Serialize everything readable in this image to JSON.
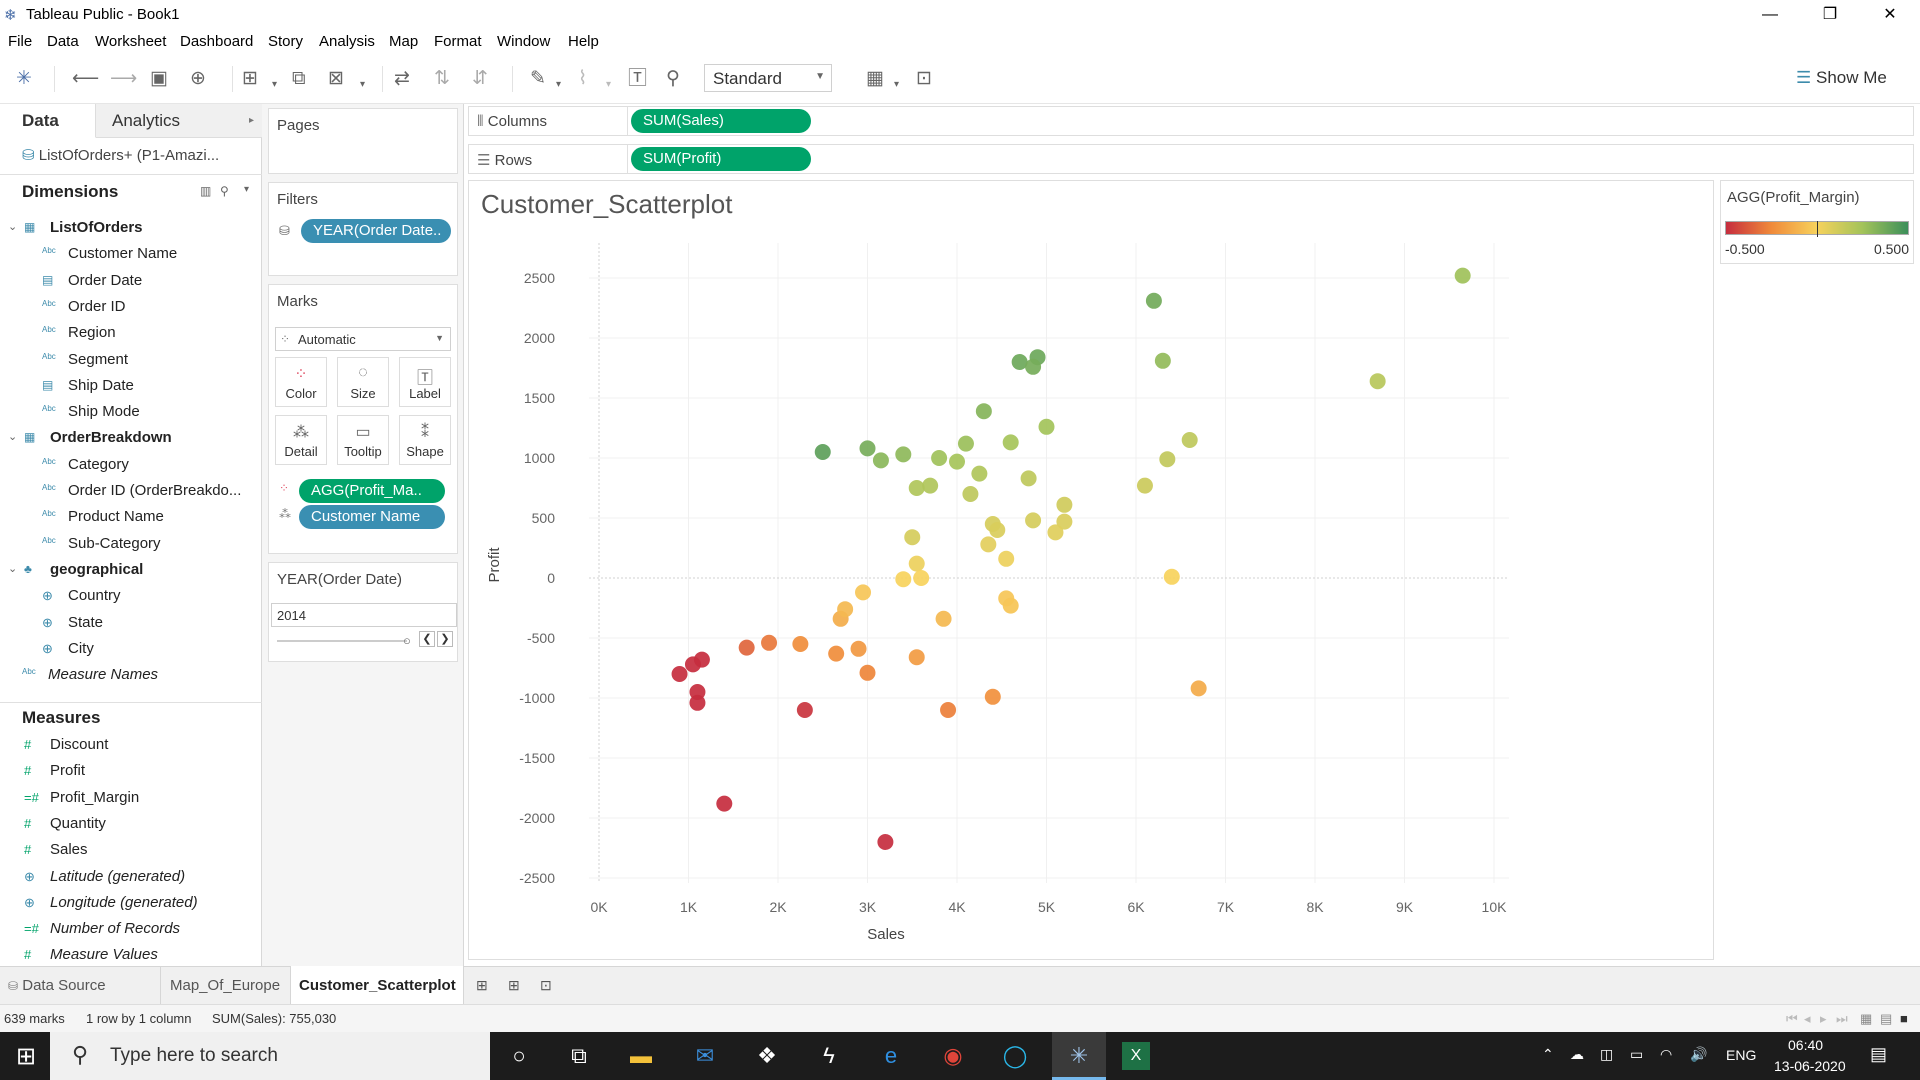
{
  "window": {
    "title": "Tableau Public - Book1"
  },
  "menu": [
    "File",
    "Data",
    "Worksheet",
    "Dashboard",
    "Story",
    "Analysis",
    "Map",
    "Format",
    "Window",
    "Help"
  ],
  "toolbar": {
    "fit_mode": "Standard",
    "show_me": "Show Me"
  },
  "data_pane": {
    "tabs": [
      "Data",
      "Analytics"
    ],
    "datasource": "ListOfOrders+ (P1-Amazi...",
    "dimensions_title": "Dimensions",
    "dimensions": [
      {
        "name": "ListOfOrders",
        "type": "folder"
      },
      {
        "name": "Customer Name",
        "type": "abc"
      },
      {
        "name": "Order Date",
        "type": "date"
      },
      {
        "name": "Order ID",
        "type": "abc"
      },
      {
        "name": "Region",
        "type": "abc"
      },
      {
        "name": "Segment",
        "type": "abc"
      },
      {
        "name": "Ship Date",
        "type": "date"
      },
      {
        "name": "Ship Mode",
        "type": "abc"
      },
      {
        "name": "OrderBreakdown",
        "type": "folder"
      },
      {
        "name": "Category",
        "type": "abc"
      },
      {
        "name": "Order ID (OrderBreakdo...",
        "type": "abc"
      },
      {
        "name": "Product Name",
        "type": "abc"
      },
      {
        "name": "Sub-Category",
        "type": "abc"
      },
      {
        "name": "geographical",
        "type": "hier"
      },
      {
        "name": "Country",
        "type": "geo"
      },
      {
        "name": "State",
        "type": "geo"
      },
      {
        "name": "City",
        "type": "geo"
      },
      {
        "name": "Measure Names",
        "type": "abc-italic"
      }
    ],
    "measures_title": "Measures",
    "measures": [
      {
        "name": "Discount",
        "type": "num"
      },
      {
        "name": "Profit",
        "type": "num"
      },
      {
        "name": "Profit_Margin",
        "type": "calc"
      },
      {
        "name": "Quantity",
        "type": "num"
      },
      {
        "name": "Sales",
        "type": "num"
      },
      {
        "name": "Latitude (generated)",
        "type": "geo-italic"
      },
      {
        "name": "Longitude (generated)",
        "type": "geo-italic"
      },
      {
        "name": "Number of Records",
        "type": "calc-italic"
      },
      {
        "name": "Measure Values",
        "type": "num-italic"
      }
    ]
  },
  "shelves": {
    "pages_title": "Pages",
    "filters_title": "Filters",
    "filter_pill": "YEAR(Order Date..",
    "marks_title": "Marks",
    "mark_type": "Automatic",
    "mark_buttons": [
      "Color",
      "Size",
      "Label",
      "Detail",
      "Tooltip",
      "Shape"
    ],
    "color_pill": "AGG(Profit_Ma..",
    "detail_pill": "Customer Name",
    "columns_label": "Columns",
    "columns_pill": "SUM(Sales)",
    "rows_label": "Rows",
    "rows_pill": "SUM(Profit)",
    "page_filter_title": "YEAR(Order Date)",
    "page_filter_value": "2014"
  },
  "legend": {
    "title": "AGG(Profit_Margin)",
    "min_label": "-0.500",
    "max_label": "0.500",
    "colors": [
      "#c62d3e",
      "#f08a3a",
      "#f7d25c",
      "#a3c35a",
      "#3c8f5a"
    ]
  },
  "sheet_tabs": [
    "Data Source",
    "Map_Of_Europe",
    "Customer_Scatterplot"
  ],
  "active_tab": "Customer_Scatterplot",
  "status": {
    "marks": "639 marks",
    "dims": "1 row by 1 column",
    "sum": "SUM(Sales): 755,030"
  },
  "taskbar": {
    "search_placeholder": "Type here to search",
    "lang": "ENG",
    "time": "06:40",
    "date": "13-06-2020"
  },
  "chart_data": {
    "type": "scatter",
    "title": "Customer_Scatterplot",
    "xlabel": "Sales",
    "ylabel": "Profit",
    "xlim": [
      0,
      10000
    ],
    "ylim": [
      -2500,
      2500
    ],
    "xticks": [
      "0K",
      "1K",
      "2K",
      "3K",
      "4K",
      "5K",
      "6K",
      "7K",
      "8K",
      "9K",
      "10K"
    ],
    "yticks": [
      2500,
      2000,
      1500,
      1000,
      500,
      0,
      -500,
      -1000,
      -1500,
      -2000,
      -2500
    ],
    "color_field": "AGG(Profit_Margin)",
    "points": [
      {
        "x": 9650,
        "y": 2520,
        "m": 0.26
      },
      {
        "x": 6200,
        "y": 2310,
        "m": 0.37
      },
      {
        "x": 6300,
        "y": 1810,
        "m": 0.29
      },
      {
        "x": 4700,
        "y": 1800,
        "m": 0.38
      },
      {
        "x": 4900,
        "y": 1840,
        "m": 0.38
      },
      {
        "x": 4850,
        "y": 1760,
        "m": 0.36
      },
      {
        "x": 8700,
        "y": 1640,
        "m": 0.19
      },
      {
        "x": 4300,
        "y": 1390,
        "m": 0.32
      },
      {
        "x": 5000,
        "y": 1260,
        "m": 0.25
      },
      {
        "x": 6600,
        "y": 1150,
        "m": 0.17
      },
      {
        "x": 6350,
        "y": 990,
        "m": 0.16
      },
      {
        "x": 6100,
        "y": 770,
        "m": 0.13
      },
      {
        "x": 5200,
        "y": 610,
        "m": 0.12
      },
      {
        "x": 5200,
        "y": 470,
        "m": 0.09
      },
      {
        "x": 5100,
        "y": 380,
        "m": 0.07
      },
      {
        "x": 4400,
        "y": 450,
        "m": 0.1
      },
      {
        "x": 4450,
        "y": 400,
        "m": 0.09
      },
      {
        "x": 4850,
        "y": 480,
        "m": 0.1
      },
      {
        "x": 4350,
        "y": 280,
        "m": 0.06
      },
      {
        "x": 4550,
        "y": 160,
        "m": 0.03
      },
      {
        "x": 4800,
        "y": 830,
        "m": 0.17
      },
      {
        "x": 4600,
        "y": 1130,
        "m": 0.24
      },
      {
        "x": 4100,
        "y": 1120,
        "m": 0.27
      },
      {
        "x": 4250,
        "y": 870,
        "m": 0.21
      },
      {
        "x": 4000,
        "y": 970,
        "m": 0.24
      },
      {
        "x": 4150,
        "y": 700,
        "m": 0.17
      },
      {
        "x": 3700,
        "y": 770,
        "m": 0.21
      },
      {
        "x": 3550,
        "y": 750,
        "m": 0.21
      },
      {
        "x": 3800,
        "y": 1000,
        "m": 0.26
      },
      {
        "x": 3400,
        "y": 1030,
        "m": 0.3
      },
      {
        "x": 3000,
        "y": 1080,
        "m": 0.36
      },
      {
        "x": 2500,
        "y": 1050,
        "m": 0.42
      },
      {
        "x": 3150,
        "y": 980,
        "m": 0.31
      },
      {
        "x": 3500,
        "y": 340,
        "m": 0.1
      },
      {
        "x": 3550,
        "y": 120,
        "m": 0.03
      },
      {
        "x": 3600,
        "y": 0,
        "m": 0.0
      },
      {
        "x": 3400,
        "y": -10,
        "m": 0.0
      },
      {
        "x": 6400,
        "y": 10,
        "m": 0.0
      },
      {
        "x": 4600,
        "y": -230,
        "m": -0.05
      },
      {
        "x": 4550,
        "y": -170,
        "m": -0.04
      },
      {
        "x": 3850,
        "y": -340,
        "m": -0.09
      },
      {
        "x": 3550,
        "y": -660,
        "m": -0.19
      },
      {
        "x": 6700,
        "y": -920,
        "m": -0.14
      },
      {
        "x": 4400,
        "y": -990,
        "m": -0.23
      },
      {
        "x": 3900,
        "y": -1100,
        "m": -0.28
      },
      {
        "x": 3000,
        "y": -790,
        "m": -0.26
      },
      {
        "x": 2900,
        "y": -590,
        "m": -0.2
      },
      {
        "x": 2650,
        "y": -630,
        "m": -0.24
      },
      {
        "x": 2250,
        "y": -550,
        "m": -0.24
      },
      {
        "x": 2700,
        "y": -340,
        "m": -0.13
      },
      {
        "x": 2750,
        "y": -260,
        "m": -0.09
      },
      {
        "x": 2950,
        "y": -120,
        "m": -0.04
      },
      {
        "x": 2300,
        "y": -1100,
        "m": -0.48
      },
      {
        "x": 1400,
        "y": -1880,
        "m": -0.55
      },
      {
        "x": 3200,
        "y": -2200,
        "m": -0.55
      },
      {
        "x": 1100,
        "y": -1040,
        "m": -0.55
      },
      {
        "x": 1100,
        "y": -950,
        "m": -0.55
      },
      {
        "x": 1050,
        "y": -720,
        "m": -0.55
      },
      {
        "x": 1150,
        "y": -680,
        "m": -0.55
      },
      {
        "x": 900,
        "y": -800,
        "m": -0.55
      },
      {
        "x": 1900,
        "y": -540,
        "m": -0.3
      },
      {
        "x": 1650,
        "y": -580,
        "m": -0.35
      }
    ]
  }
}
